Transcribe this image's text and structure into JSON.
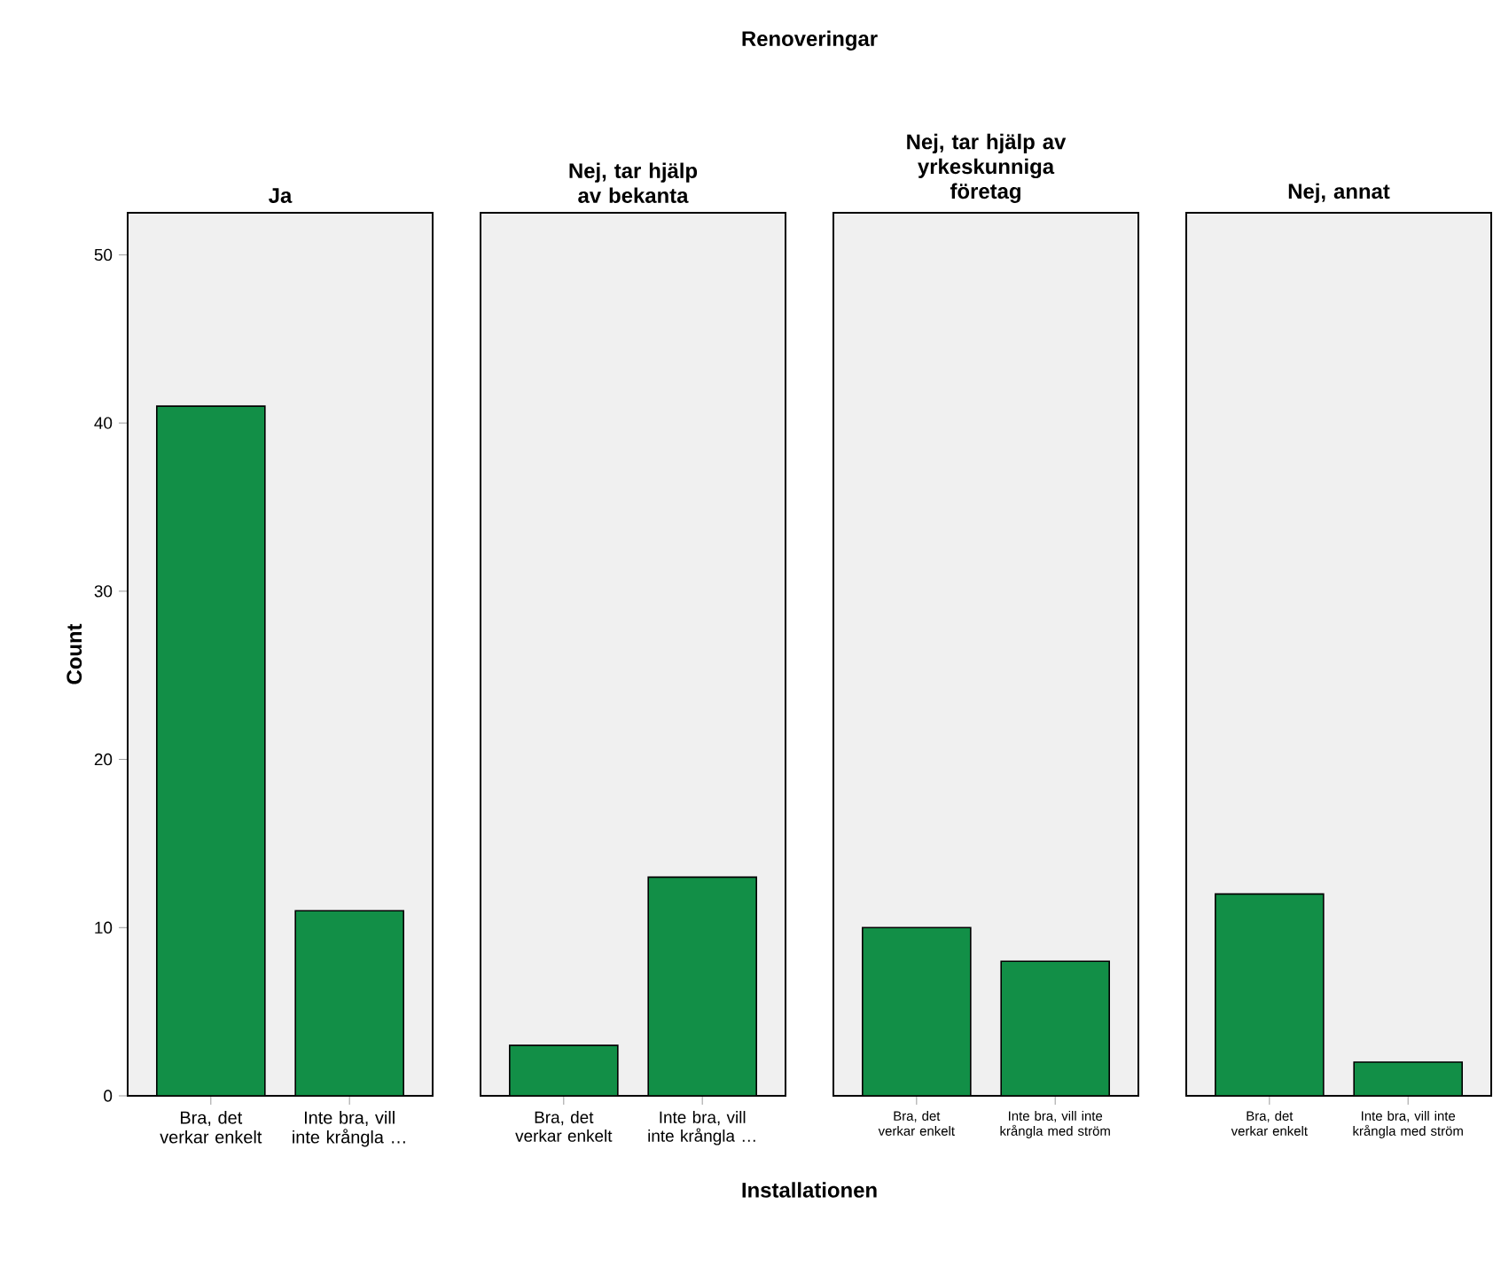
{
  "chart_data": [
    {
      "type": "bar",
      "title": "Ja",
      "ylabel": "Count",
      "categories": [
        "Bra, det verkar enkelt",
        "Inte bra, vill inte krångla …"
      ],
      "values": [
        41,
        11
      ],
      "color": "#128f47",
      "ylim": [
        0,
        52.5
      ],
      "yticks": [
        0,
        10,
        20,
        30,
        40,
        50
      ]
    },
    {
      "type": "bar",
      "title": "Nej, tar hjälp av bekanta",
      "annotations": [
        "Renoveringar"
      ],
      "xlabel": "Installationen",
      "categories": [
        "Bra, det verkar enkelt",
        "Inte bra, vill inte krångla …"
      ],
      "values": [
        3,
        13
      ],
      "color": "#128f47",
      "ylim": [
        0,
        52.5
      ],
      "yticks": [
        0,
        10,
        20,
        30,
        40,
        50
      ],
      "tick_labels": "x"
    },
    {
      "type": "bar",
      "title": "Nej, tar hjälp av yrkeskunniga företag",
      "categories": [
        "Bra, det verkar enkelt",
        "Inte bra, vill inte krångla med ström"
      ],
      "values": [
        10,
        8
      ],
      "color": "#128f47",
      "ylim": [
        0,
        52.5
      ],
      "yticks": [
        0,
        10,
        20,
        30,
        40,
        50
      ],
      "tick_labels": "x"
    },
    {
      "type": "bar",
      "title": "Nej, annat",
      "categories": [
        "Bra, det verkar enkelt",
        "Inte bra, vill inte krångla med ström"
      ],
      "values": [
        12,
        2
      ],
      "color": "#128f47",
      "ylim": [
        0,
        52.5
      ],
      "yticks": [
        0,
        10,
        20,
        30,
        40,
        50
      ],
      "tick_labels": "x"
    }
  ]
}
